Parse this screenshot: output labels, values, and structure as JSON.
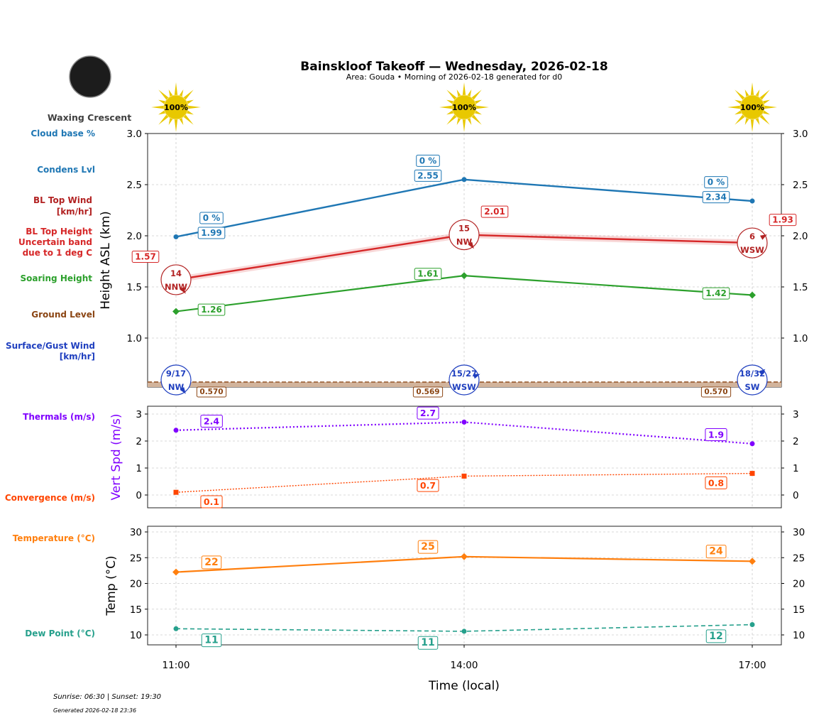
{
  "title": "Bainskloof Takeoff — Wednesday, 2026-02-18",
  "subtitle": "Area: Gouda • Morning of 2026-02-18 generated for d0",
  "moon_phase": "Waxing Crescent",
  "footer": {
    "sun_times": "Sunrise: 06:30 | Sunset: 19:30",
    "generated": "Generated 2026-02-18 23:36"
  },
  "colors": {
    "condens": "#1f77b4",
    "bl_top": "#d62728",
    "bl_wind": "#b22222",
    "soaring": "#2ca02c",
    "ground": "#8b4513",
    "surface_wind": "#1f3fbf",
    "thermals": "#8000ff",
    "convergence": "#ff4500",
    "temperature": "#ff7f0e",
    "dew_point": "#26a08c",
    "sun": "#e8c800"
  },
  "side_labels": {
    "cloud_base": "Cloud base %",
    "condens": "Condens Lvl",
    "bl_wind_1": "BL Top Wind",
    "bl_wind_2": "[km/hr]",
    "bl_top_1": "BL Top Height",
    "bl_top_2": "Uncertain band",
    "bl_top_3": "due to 1 deg C",
    "soaring": "Soaring Height",
    "ground": "Ground Level",
    "surface_1": "Surface/Gust Wind",
    "surface_2": "[km/hr]",
    "thermals": "Thermals (m/s)",
    "convergence": "Convergence (m/s)",
    "temperature": "Temperature (°C)",
    "dew_point": "Dew Point (°C)"
  },
  "chart_data": [
    {
      "type": "line",
      "ylabel": "Height ASL (km)",
      "ylim": [
        0.52,
        3.0
      ],
      "yticks": [
        "1.0",
        "1.5",
        "2.0",
        "2.5",
        "3.0"
      ],
      "grid": true,
      "x": [
        "11:00",
        "14:00",
        "17:00"
      ],
      "sun_cover": [
        "100%",
        "100%",
        "100%"
      ],
      "series": [
        {
          "key": "condens",
          "values": [
            1.99,
            2.55,
            2.34
          ],
          "labels": [
            "1.99",
            "2.55",
            "2.34"
          ],
          "cloud_pct": [
            "0 %",
            "0 %",
            "0 %"
          ]
        },
        {
          "key": "bl_top",
          "values": [
            1.57,
            2.01,
            1.93
          ],
          "labels": [
            "1.57",
            "2.01",
            "1.93"
          ],
          "band": 0.03
        },
        {
          "key": "soaring",
          "values": [
            1.26,
            1.61,
            1.42
          ],
          "labels": [
            "1.26",
            "1.61",
            "1.42"
          ]
        },
        {
          "key": "ground",
          "values": [
            0.57,
            0.569,
            0.57
          ],
          "labels": [
            "0.570",
            "0.569",
            "0.570"
          ]
        }
      ],
      "bl_wind": [
        {
          "speed": "14",
          "dir": "NNW"
        },
        {
          "speed": "15",
          "dir": "NW"
        },
        {
          "speed": "6",
          "dir": "WSW"
        }
      ],
      "surface_wind": [
        {
          "speed": "9/17",
          "dir": "NW"
        },
        {
          "speed": "15/27",
          "dir": "WSW"
        },
        {
          "speed": "18/32",
          "dir": "SW"
        }
      ]
    },
    {
      "type": "line",
      "ylabel": "Vert Spd (m/s)",
      "ylim": [
        -0.47,
        3.29
      ],
      "yticks": [
        "0",
        "1",
        "2",
        "3"
      ],
      "grid": true,
      "x": [
        "11:00",
        "14:00",
        "17:00"
      ],
      "series": [
        {
          "key": "thermals",
          "values": [
            2.4,
            2.7,
            1.9
          ],
          "labels": [
            "2.4",
            "2.7",
            "1.9"
          ]
        },
        {
          "key": "convergence",
          "values": [
            0.1,
            0.7,
            0.8
          ],
          "labels": [
            "0.1",
            "0.7",
            "0.8"
          ]
        }
      ]
    },
    {
      "type": "line",
      "ylabel": "Temp (°C)",
      "xlabel": "Time (local)",
      "ylim": [
        8.1,
        31.1
      ],
      "yticks": [
        "10",
        "15",
        "20",
        "25",
        "30"
      ],
      "xticks": [
        "11:00",
        "14:00",
        "17:00"
      ],
      "grid": true,
      "x": [
        "11:00",
        "14:00",
        "17:00"
      ],
      "series": [
        {
          "key": "temperature",
          "values": [
            22.2,
            25.2,
            24.3
          ],
          "labels": [
            "22",
            "25",
            "24"
          ]
        },
        {
          "key": "dew_point",
          "values": [
            11.2,
            10.7,
            12.0
          ],
          "labels": [
            "11",
            "11",
            "12"
          ]
        }
      ]
    }
  ]
}
